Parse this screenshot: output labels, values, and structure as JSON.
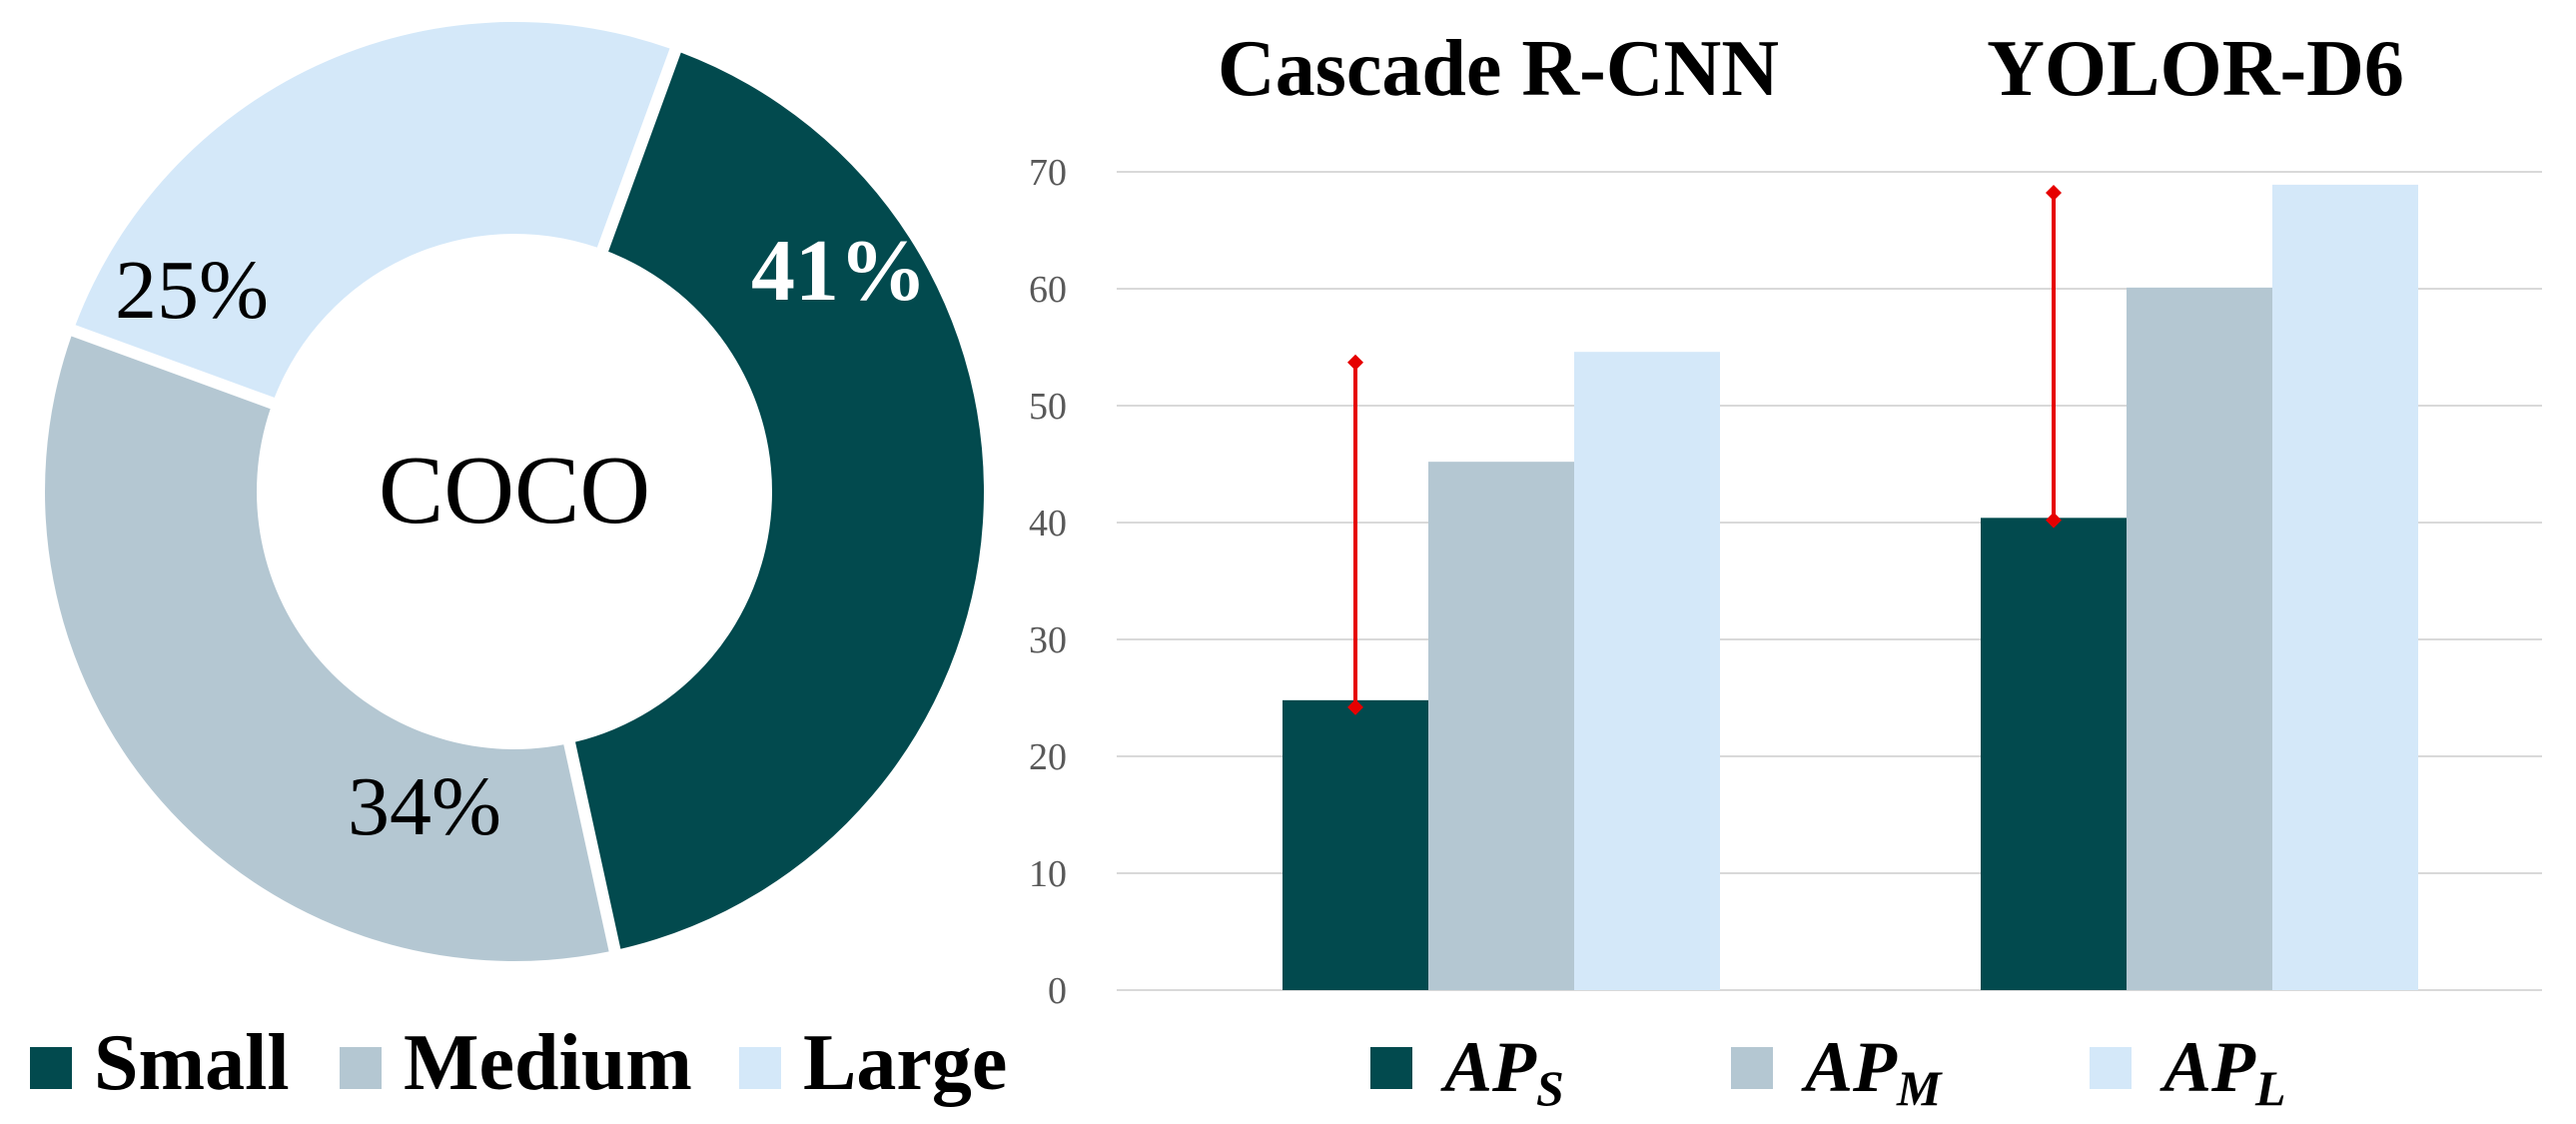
{
  "colors": {
    "small": "#024a4e",
    "medium": "#b4c7d2",
    "large": "#d4e8f9",
    "error_bar": "#e60000",
    "grid": "#d9d9d9",
    "text": "#000000",
    "tick_text": "#595959"
  },
  "chart_data": [
    {
      "type": "pie",
      "variant": "donut",
      "title": "COCO",
      "series": [
        {
          "name": "Small",
          "value": 41,
          "label": "41%",
          "color_key": "small"
        },
        {
          "name": "Medium",
          "value": 34,
          "label": "34%",
          "color_key": "medium"
        },
        {
          "name": "Large",
          "value": 25,
          "label": "25%",
          "color_key": "large"
        }
      ],
      "legend": {
        "placement": "bottom",
        "items": [
          "Small",
          "Medium",
          "Large"
        ]
      }
    },
    {
      "type": "bar",
      "categories": [
        "Cascade R-CNN",
        "YOLOR-D6"
      ],
      "series": [
        {
          "name": "AP_S",
          "label_main": "AP",
          "label_sub": "S",
          "values": [
            24.8,
            40.4
          ],
          "color_key": "small"
        },
        {
          "name": "AP_M",
          "label_main": "AP",
          "label_sub": "M",
          "values": [
            45.2,
            60.1
          ],
          "color_key": "medium"
        },
        {
          "name": "AP_L",
          "label_main": "AP",
          "label_sub": "L",
          "values": [
            54.6,
            68.9
          ],
          "color_key": "large"
        }
      ],
      "error_bars": [
        {
          "category": "Cascade R-CNN",
          "series": "AP_S",
          "low": 24.2,
          "high": 53.7
        },
        {
          "category": "YOLOR-D6",
          "series": "AP_S",
          "low": 40.2,
          "high": 68.2
        }
      ],
      "ylim": [
        0,
        70
      ],
      "yticks": [
        "0",
        "10",
        "20",
        "30",
        "40",
        "50",
        "60",
        "70"
      ],
      "grid": true,
      "xlabel": "",
      "ylabel": "",
      "legend": {
        "placement": "bottom"
      }
    }
  ]
}
